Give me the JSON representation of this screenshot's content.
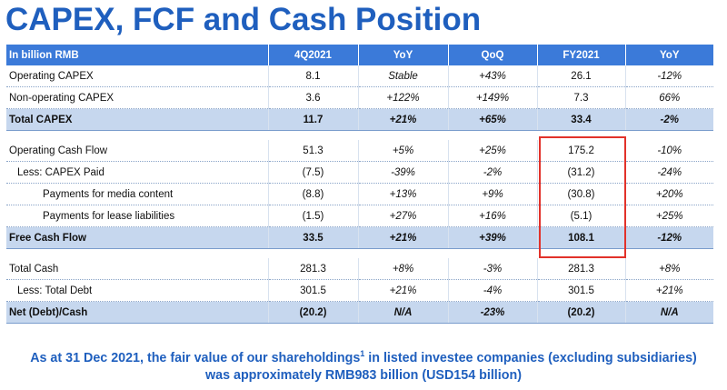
{
  "title": "CAPEX, FCF and Cash Position",
  "header": [
    "In billion RMB",
    "4Q2021",
    "YoY",
    "QoQ",
    "FY2021",
    "YoY"
  ],
  "rows": [
    {
      "label": "Operating CAPEX",
      "cells": [
        "8.1",
        "Stable",
        "+43%",
        "26.1",
        "-12%"
      ]
    },
    {
      "label": "Non-operating CAPEX",
      "cells": [
        "3.6",
        "+122%",
        "+149%",
        "7.3",
        "66%"
      ]
    },
    {
      "label": "Total CAPEX",
      "cells": [
        "11.7",
        "+21%",
        "+65%",
        "33.4",
        "-2%"
      ]
    },
    {
      "label": "Operating Cash Flow",
      "cells": [
        "51.3",
        "+5%",
        "+25%",
        "175.2",
        "-10%"
      ]
    },
    {
      "label": "Less: CAPEX Paid",
      "cells": [
        "(7.5)",
        "-39%",
        "-2%",
        "(31.2)",
        "-24%"
      ]
    },
    {
      "label": "Payments for media content",
      "cells": [
        "(8.8)",
        "+13%",
        "+9%",
        "(30.8)",
        "+20%"
      ]
    },
    {
      "label": "Payments for lease liabilities",
      "cells": [
        "(1.5)",
        "+27%",
        "+16%",
        "(5.1)",
        "+25%"
      ]
    },
    {
      "label": "Free Cash Flow",
      "cells": [
        "33.5",
        "+21%",
        "+39%",
        "108.1",
        "-12%"
      ]
    },
    {
      "label": "Total Cash",
      "cells": [
        "281.3",
        "+8%",
        "-3%",
        "281.3",
        "+8%"
      ]
    },
    {
      "label": "Less: Total Debt",
      "cells": [
        "301.5",
        "+21%",
        "-4%",
        "301.5",
        "+21%"
      ]
    },
    {
      "label": "Net (Debt)/Cash",
      "cells": [
        "(20.2)",
        "N/A",
        "-23%",
        "(20.2)",
        "N/A"
      ]
    }
  ],
  "footnote": {
    "part1": "As at 31 Dec 2021, the fair value of our shareholdings",
    "sup": "1",
    "part2": " in listed investee companies (excluding subsidiaries)",
    "line2": "was approximately RMB983 billion (USD154 billion)"
  },
  "colors": {
    "accent": "#1f5fbe",
    "header_bg": "#3b7ad9",
    "total_bg": "#c6d7ee",
    "highlight": "#e2322a"
  }
}
